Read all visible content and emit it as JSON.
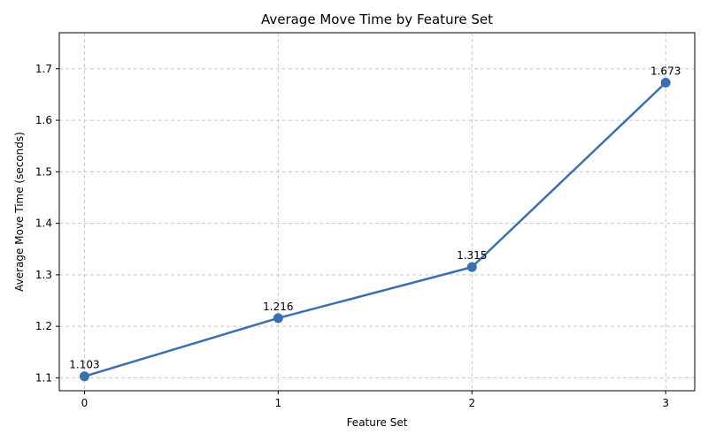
{
  "chart_data": {
    "type": "line",
    "title": "Average Move Time by Feature Set",
    "xlabel": "Feature Set",
    "ylabel": "Average Move Time (seconds)",
    "x": [
      0,
      1,
      2,
      3
    ],
    "x_tick_labels": [
      "0",
      "1",
      "2",
      "3"
    ],
    "y_ticks": [
      1.1,
      1.2,
      1.3,
      1.4,
      1.5,
      1.6,
      1.7
    ],
    "y_tick_labels": [
      "1.1",
      "1.2",
      "1.3",
      "1.4",
      "1.5",
      "1.6",
      "1.7"
    ],
    "xlim": [
      -0.13,
      3.15
    ],
    "ylim": [
      1.075,
      1.77
    ],
    "series": [
      {
        "values": [
          1.103,
          1.216,
          1.315,
          1.673
        ],
        "data_labels": [
          "1.103",
          "1.216",
          "1.315",
          "1.673"
        ],
        "color": "#3a70b0"
      }
    ],
    "grid": true,
    "grid_style": "dashed",
    "legend": "none"
  }
}
